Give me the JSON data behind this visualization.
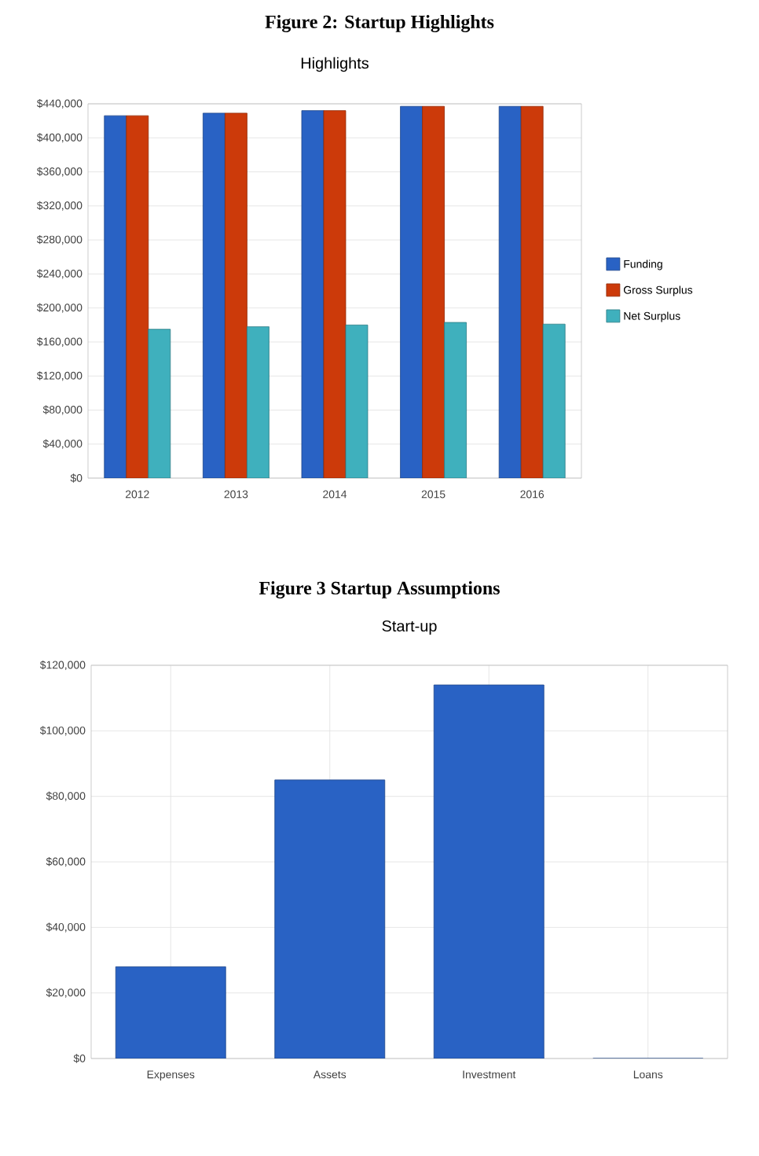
{
  "chart_data": [
    {
      "type": "bar",
      "title": "Figure 2: Startup Highlights",
      "subtitle": "Highlights",
      "categories": [
        "2012",
        "2013",
        "2014",
        "2015",
        "2016"
      ],
      "series": [
        {
          "name": "Funding",
          "color": "#2962c4",
          "values": [
            426000,
            429000,
            432000,
            437000,
            437000
          ]
        },
        {
          "name": "Gross Surplus",
          "color": "#cc3a0a",
          "values": [
            426000,
            429000,
            432000,
            437000,
            437000
          ]
        },
        {
          "name": "Net Surplus",
          "color": "#3fb0bd",
          "values": [
            175000,
            178000,
            180000,
            183000,
            181000
          ]
        }
      ],
      "ylim": [
        0,
        440000
      ],
      "yticks": [
        {
          "value": 0,
          "label": "$0"
        },
        {
          "value": 40000,
          "label": "$40,000"
        },
        {
          "value": 80000,
          "label": "$80,000"
        },
        {
          "value": 120000,
          "label": "$120,000"
        },
        {
          "value": 160000,
          "label": "$160,000"
        },
        {
          "value": 200000,
          "label": "$200,000"
        },
        {
          "value": 240000,
          "label": "$240,000"
        },
        {
          "value": 280000,
          "label": "$280,000"
        },
        {
          "value": 320000,
          "label": "$320,000"
        },
        {
          "value": 360000,
          "label": "$360,000"
        },
        {
          "value": 400000,
          "label": "$400,000"
        },
        {
          "value": 440000,
          "label": "$440,000"
        }
      ],
      "grid": "y",
      "legend": "right"
    },
    {
      "type": "bar",
      "title": "Figure 3 Startup Assumptions",
      "subtitle": "Start-up",
      "categories": [
        "Expenses",
        "Assets",
        "Investment",
        "Loans"
      ],
      "values": [
        28000,
        85000,
        114000,
        0
      ],
      "color": "#2962c4",
      "ylim": [
        0,
        120000
      ],
      "yticks": [
        {
          "value": 0,
          "label": "$0"
        },
        {
          "value": 20000,
          "label": "$20,000"
        },
        {
          "value": 40000,
          "label": "$40,000"
        },
        {
          "value": 60000,
          "label": "$60,000"
        },
        {
          "value": 80000,
          "label": "$80,000"
        },
        {
          "value": 100000,
          "label": "$100,000"
        },
        {
          "value": 120000,
          "label": "$120,000"
        }
      ],
      "grid": true
    }
  ]
}
